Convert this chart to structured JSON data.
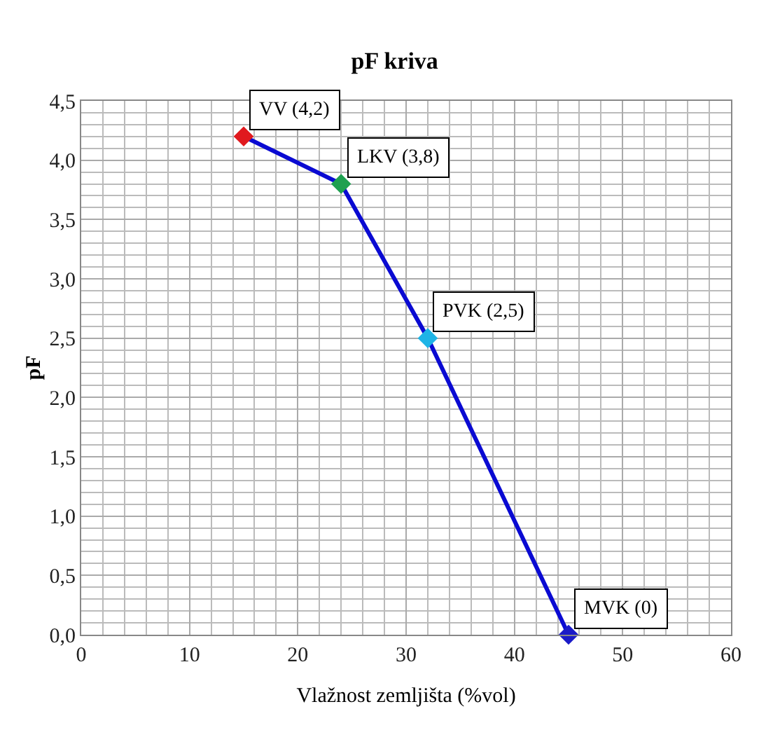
{
  "chart_data": {
    "type": "line",
    "title": "pF kriva",
    "xlabel": "Vlažnost zemljišta (%vol)",
    "ylabel": "pF",
    "x": [
      15,
      24,
      32,
      45
    ],
    "series": [
      {
        "color": "#0a0ad2",
        "values": [
          4.2,
          3.8,
          2.5,
          0
        ],
        "colors": [
          "#e0191e",
          "#1fa050",
          "#1eb4e6",
          "#1a1ac8"
        ]
      }
    ],
    "annotations": [
      {
        "text": "VV (4,2)",
        "x": 15,
        "y": 4.2
      },
      {
        "text": "LKV (3,8)",
        "x": 24,
        "y": 3.8
      },
      {
        "text": "PVK (2,5)",
        "x": 32,
        "y": 2.5
      },
      {
        "text": "MVK (0)",
        "x": 45,
        "y": 0
      }
    ],
    "xlim": [
      0,
      60
    ],
    "xticks": [
      0,
      10,
      20,
      30,
      40,
      50,
      60
    ],
    "ylim": [
      0,
      4.5
    ],
    "yticks": [
      {
        "value": 0,
        "label": "0,0"
      },
      {
        "value": 0.5,
        "label": "0,5"
      },
      {
        "value": 1,
        "label": "1,0"
      },
      {
        "value": 1.5,
        "label": "1,5"
      },
      {
        "value": 2,
        "label": "2,0"
      },
      {
        "value": 2.5,
        "label": "2,5"
      },
      {
        "value": 3,
        "label": "3,0"
      },
      {
        "value": 3.5,
        "label": "3,5"
      },
      {
        "value": 4,
        "label": "4,0"
      },
      {
        "value": 4.5,
        "label": "4,5"
      }
    ],
    "grid": true,
    "marker": "diamond",
    "line_style": "solid",
    "legend": false
  }
}
